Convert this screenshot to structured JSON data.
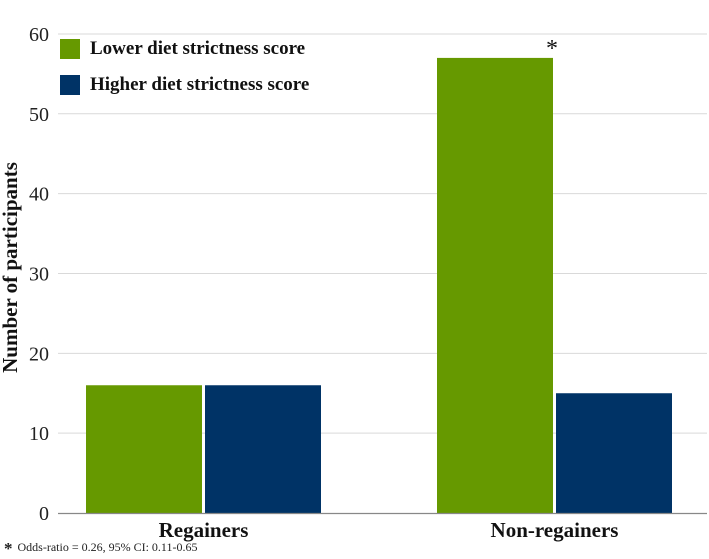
{
  "chart_data": {
    "type": "bar",
    "categories": [
      "Regainers",
      "Non-regainers"
    ],
    "series": [
      {
        "name": "Lower diet strictness score",
        "values": [
          16,
          57
        ],
        "color": "#669900"
      },
      {
        "name": "Higher diet strictness score",
        "values": [
          16,
          15
        ],
        "color": "#003366"
      }
    ],
    "ylabel": "Number of participants",
    "xlabel": "",
    "ylim": [
      0,
      63
    ],
    "yticks": [
      0,
      10,
      20,
      30,
      40,
      50,
      60
    ],
    "grid": true,
    "legend_position": "top-left",
    "significance_marker": {
      "symbol": "*",
      "category": "Non-regainers",
      "series": "Lower diet strictness score"
    }
  },
  "footnote": {
    "symbol": "*",
    "text": "Odds-ratio = 0.26, 95% CI: 0.11-0.65"
  }
}
